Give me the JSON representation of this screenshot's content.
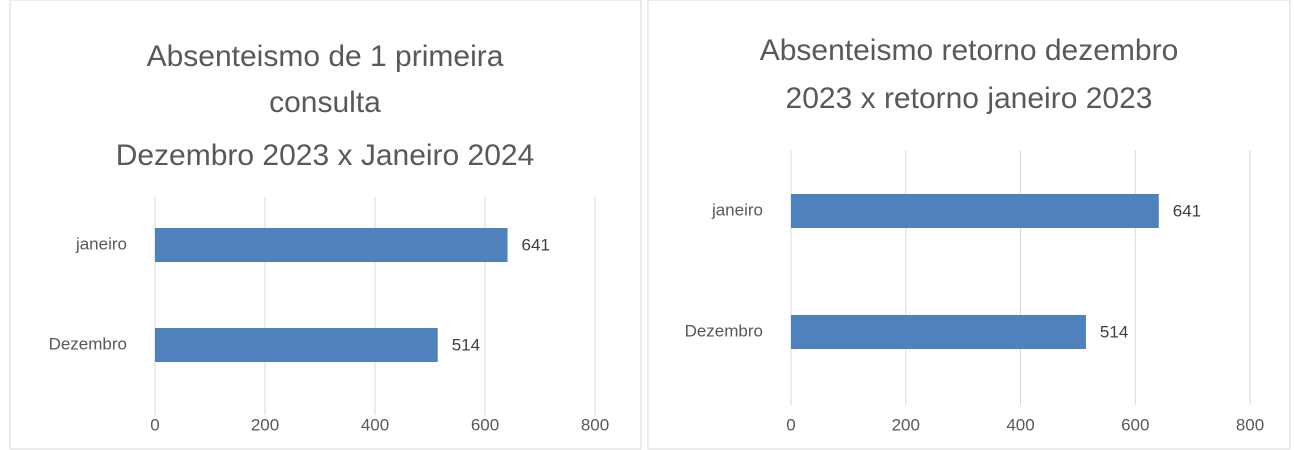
{
  "chart_data": [
    {
      "type": "bar",
      "orientation": "horizontal",
      "title": [
        "Absenteismo de 1 primeira",
        "consulta",
        "Dezembro 2023 x Janeiro 2024"
      ],
      "categories": [
        "Dezembro",
        "janeiro"
      ],
      "values": [
        514,
        641
      ],
      "color": "#4f81bd",
      "xlim": [
        0,
        800
      ],
      "xticks": [
        0,
        200,
        400,
        600,
        800
      ],
      "grid": true
    },
    {
      "type": "bar",
      "orientation": "horizontal",
      "title": [
        "Absenteismo retorno dezembro",
        "2023 x retorno janeiro 2023"
      ],
      "categories": [
        "Dezembro",
        "janeiro"
      ],
      "values": [
        514,
        641
      ],
      "color": "#4f81bd",
      "xlim": [
        0,
        800
      ],
      "xticks": [
        0,
        200,
        400,
        600,
        800
      ],
      "grid": true
    }
  ]
}
